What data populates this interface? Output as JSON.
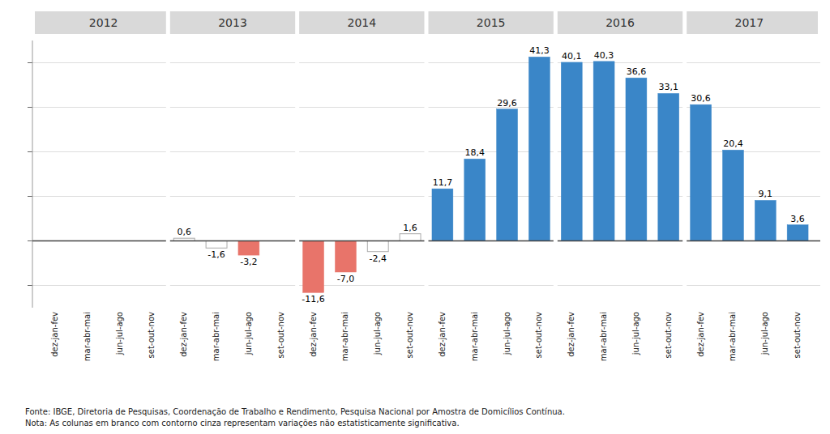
{
  "chart_data": {
    "type": "bar",
    "categories": [
      "dez-jan-fev",
      "mar-abr-mai",
      "jun-jul-ago",
      "set-out-nov",
      "dez-jan-fev",
      "mar-abr-mai",
      "jun-jul-ago",
      "set-out-nov",
      "dez-jan-fev",
      "mar-abr-mai",
      "jun-jul-ago",
      "set-out-nov",
      "dez-jan-fev",
      "mar-abr-mai",
      "jun-jul-ago",
      "set-out-nov",
      "dez-jan-fev",
      "mar-abr-mai",
      "jun-jul-ago",
      "set-out-nov",
      "dez-jan-fev",
      "mar-abr-mai",
      "jun-jul-ago",
      "set-out-nov"
    ],
    "values": [
      null,
      null,
      null,
      null,
      0.6,
      -1.6,
      -3.2,
      null,
      -11.6,
      -7.0,
      -2.4,
      1.6,
      11.7,
      18.4,
      29.6,
      41.3,
      40.1,
      40.3,
      36.6,
      33.1,
      30.6,
      20.4,
      9.1,
      3.6
    ],
    "value_labels": [
      null,
      null,
      null,
      null,
      "0,6",
      "-1,6",
      "-3,2",
      null,
      "-11,6",
      "-7,0",
      "-2,4",
      "1,6",
      "11,7",
      "18,4",
      "29,6",
      "41,3",
      "40,1",
      "40,3",
      "36,6",
      "33,1",
      "30,6",
      "20,4",
      "9,1",
      "3,6"
    ],
    "colors": [
      null,
      null,
      null,
      null,
      "#ffffff",
      "#ffffff",
      "#e8746a",
      null,
      "#e8746a",
      "#e8746a",
      "#ffffff",
      "#ffffff",
      "#3a86c8",
      "#3a86c8",
      "#3a86c8",
      "#3a86c8",
      "#3a86c8",
      "#3a86c8",
      "#3a86c8",
      "#3a86c8",
      "#3a86c8",
      "#3a86c8",
      "#3a86c8",
      "#3a86c8"
    ],
    "groups": [
      {
        "label": "2012",
        "start": 0,
        "end": 3
      },
      {
        "label": "2013",
        "start": 4,
        "end": 7
      },
      {
        "label": "2014",
        "start": 8,
        "end": 11
      },
      {
        "label": "2015",
        "start": 12,
        "end": 15
      },
      {
        "label": "2016",
        "start": 16,
        "end": 19
      },
      {
        "label": "2017",
        "start": 20,
        "end": 23
      }
    ],
    "ylim": [
      -15,
      45
    ],
    "yticks": [
      -10,
      0,
      10,
      20,
      30,
      40
    ],
    "grid": true,
    "data_labels": true,
    "tick_labels": "x",
    "annotations": [
      "Fonte: IBGE, Diretoria de Pesquisas, Coordenação de Trabalho e Rendimento, Pesquisa Nacional por Amostra de Domicílios Contínua.",
      "Nota: As colunas em branco com contorno cinza representam variações não estatisticamente significativa."
    ]
  }
}
